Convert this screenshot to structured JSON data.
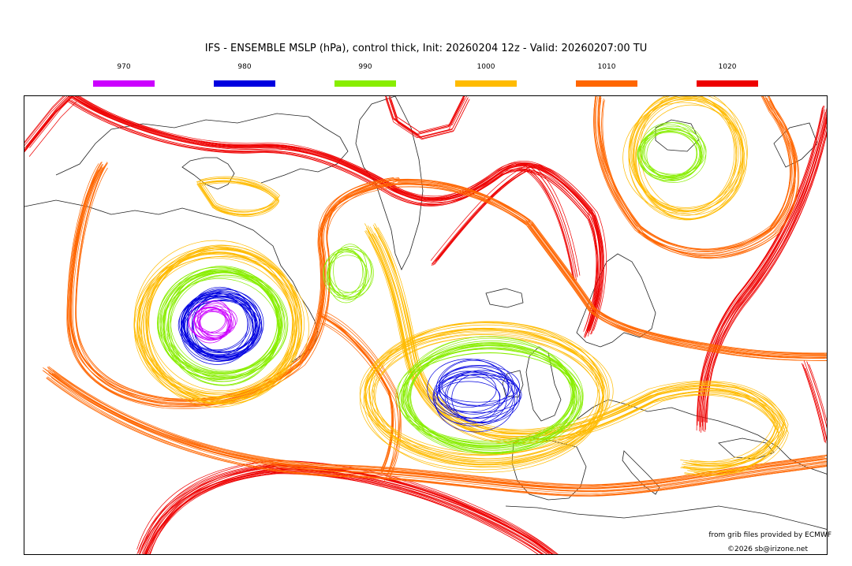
{
  "title": "IFS - ENSEMBLE MSLP (hPa), control thick, Init: 20260204 12z - Valid: 20260207:00 TU",
  "legend": [
    {
      "label": "970",
      "color": "#cc00ff"
    },
    {
      "label": "980",
      "color": "#0000e0"
    },
    {
      "label": "990",
      "color": "#88ee00"
    },
    {
      "label": "1000",
      "color": "#ffbb00"
    },
    {
      "label": "1010",
      "color": "#ff6600"
    },
    {
      "label": "1020",
      "color": "#ee0000"
    }
  ],
  "credits": {
    "source": "from grib files provided by ECMWF",
    "copyright": "©2026 sb@irizone.net"
  }
}
